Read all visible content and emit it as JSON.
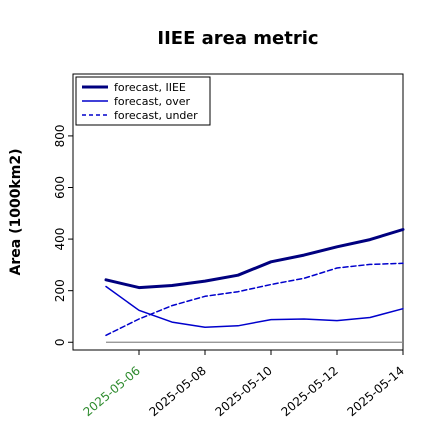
{
  "chart_data": {
    "type": "line",
    "title": "IIEE area metric",
    "ylabel": "Area (1000km2)",
    "xlabel": "",
    "x": [
      "2025-05-05",
      "2025-05-06",
      "2025-05-07",
      "2025-05-08",
      "2025-05-09",
      "2025-05-10",
      "2025-05-11",
      "2025-05-12",
      "2025-05-13",
      "2025-05-14"
    ],
    "xticks": [
      "2025-05-06",
      "2025-05-08",
      "2025-05-10",
      "2025-05-12",
      "2025-05-14"
    ],
    "highlight_tick": "2025-05-06",
    "highlight_color": "#2e8b2e",
    "yticks": [
      0,
      200,
      400,
      600,
      800
    ],
    "xlim": [
      "2025-05-04",
      "2025-05-14"
    ],
    "ylim": [
      -30,
      1040
    ],
    "grid": false,
    "legend_position": "top-left",
    "series": [
      {
        "name": "forecast, IIEE",
        "color": "#00007f",
        "style": "solid",
        "width": "thick",
        "values": [
          242,
          212,
          220,
          237,
          260,
          312,
          338,
          370,
          398,
          437
        ]
      },
      {
        "name": "forecast, over",
        "color": "#0000cc",
        "style": "solid",
        "width": "thin",
        "values": [
          216,
          124,
          78,
          58,
          64,
          88,
          90,
          84,
          96,
          130
        ]
      },
      {
        "name": "forecast, under",
        "color": "#0000cc",
        "style": "dashed",
        "width": "thin",
        "values": [
          27,
          90,
          142,
          178,
          196,
          224,
          248,
          288,
          302,
          306
        ]
      }
    ],
    "baseline": {
      "value": 0,
      "color": "#8c8c8c"
    }
  }
}
